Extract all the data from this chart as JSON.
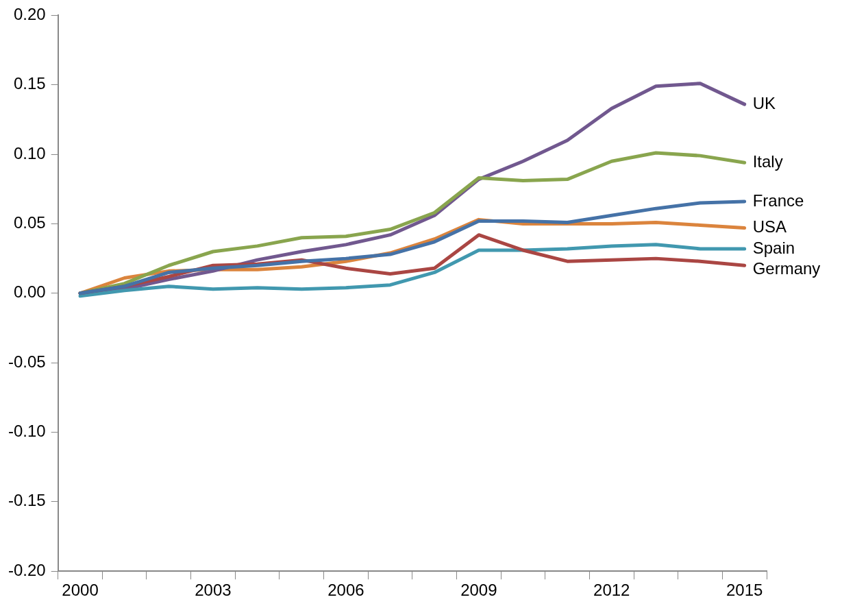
{
  "chart_data": {
    "type": "line",
    "categories": [
      "2000",
      null,
      null,
      "2003",
      null,
      null,
      "2006",
      null,
      null,
      "2009",
      null,
      null,
      "2012",
      null,
      null,
      "2015"
    ],
    "ylim": [
      -0.2,
      0.2
    ],
    "yticks": [
      {
        "value": -0.2,
        "label": "-0.20"
      },
      {
        "value": -0.15,
        "label": "-0.15"
      },
      {
        "value": -0.1,
        "label": "-0.10"
      },
      {
        "value": -0.05,
        "label": "-0.05"
      },
      {
        "value": 0,
        "label": "0.00"
      },
      {
        "value": 0.05,
        "label": "0.05"
      },
      {
        "value": 0.1,
        "label": "0.10"
      },
      {
        "value": 0.15,
        "label": "0.15"
      },
      {
        "value": 0.2,
        "label": "0.20"
      }
    ],
    "grid": false,
    "legend": false,
    "marker": "none",
    "line_style": "solid",
    "series": [
      {
        "name": "France",
        "color": "#4572a7",
        "values": [
          0,
          0.005,
          0.015,
          0.018,
          0.02,
          0.023,
          0.025,
          0.028,
          0.037,
          0.052,
          0.052,
          0.051,
          0.056,
          0.061,
          0.065,
          0.066
        ]
      },
      {
        "name": "Germany",
        "color": "#aa4643",
        "values": [
          0,
          0.005,
          0.012,
          0.02,
          0.021,
          0.024,
          0.018,
          0.014,
          0.018,
          0.042,
          0.031,
          0.023,
          0.024,
          0.025,
          0.023,
          0.02
        ]
      },
      {
        "name": "Italy",
        "color": "#89a54e",
        "values": [
          0,
          0.007,
          0.02,
          0.03,
          0.034,
          0.04,
          0.041,
          0.046,
          0.058,
          0.083,
          0.081,
          0.082,
          0.095,
          0.101,
          0.099,
          0.094
        ]
      },
      {
        "name": "Spain",
        "color": "#4198af",
        "values": [
          -0.002,
          0.002,
          0.005,
          0.003,
          0.004,
          0.003,
          0.004,
          0.006,
          0.015,
          0.031,
          0.031,
          0.032,
          0.034,
          0.035,
          0.032,
          0.032
        ]
      },
      {
        "name": "UK",
        "color": "#71588f",
        "values": [
          0,
          0.003,
          0.01,
          0.016,
          0.024,
          0.03,
          0.035,
          0.042,
          0.056,
          0.082,
          0.095,
          0.11,
          0.133,
          0.149,
          0.151,
          0.136
        ]
      },
      {
        "name": "USA",
        "color": "#db843d",
        "values": [
          0,
          0.011,
          0.016,
          0.017,
          0.017,
          0.019,
          0.023,
          0.029,
          0.039,
          0.053,
          0.05,
          0.05,
          0.05,
          0.051,
          0.049,
          0.047
        ]
      }
    ]
  }
}
